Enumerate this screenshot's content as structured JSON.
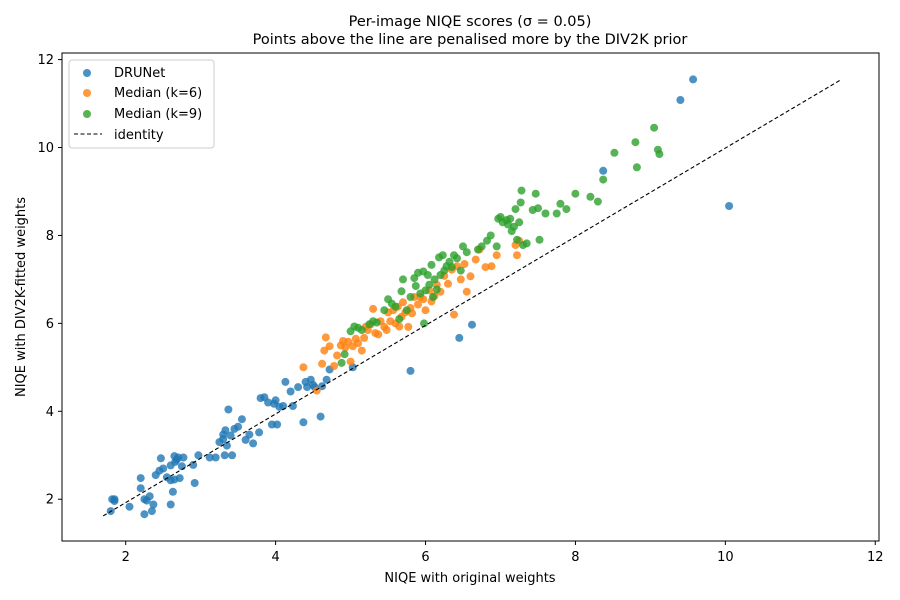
{
  "chart_data": {
    "type": "scatter",
    "title": "Per-image NIQE scores (σ = 0.05)",
    "subtitle": "Points above the line are penalised more by the DIV2K prior",
    "xlabel": "NIQE with original weights",
    "ylabel": "NIQE with DIV2K-fitted weights",
    "xlim": [
      1.15,
      12.05
    ],
    "ylim": [
      1.05,
      12.15
    ],
    "xticks": [
      2,
      4,
      6,
      8,
      10,
      12
    ],
    "yticks": [
      2,
      4,
      6,
      8,
      10,
      12
    ],
    "grid": false,
    "legend_position": "top-left",
    "identity_line": {
      "name": "identity",
      "x": [
        1.7,
        11.55
      ],
      "y": [
        1.62,
        11.55
      ],
      "color": "#000000",
      "style": "dashed"
    },
    "series": [
      {
        "name": "DRUNet",
        "color": "#1f77b4",
        "points": [
          [
            1.8,
            1.73
          ],
          [
            1.82,
            2.0
          ],
          [
            1.85,
            1.96
          ],
          [
            1.85,
            2.0
          ],
          [
            2.05,
            1.83
          ],
          [
            2.2,
            2.48
          ],
          [
            2.2,
            2.25
          ],
          [
            2.25,
            1.66
          ],
          [
            2.25,
            2.0
          ],
          [
            2.28,
            1.97
          ],
          [
            2.32,
            2.07
          ],
          [
            2.35,
            1.73
          ],
          [
            2.37,
            1.88
          ],
          [
            2.4,
            2.55
          ],
          [
            2.45,
            2.65
          ],
          [
            2.47,
            2.93
          ],
          [
            2.5,
            2.7
          ],
          [
            2.55,
            2.5
          ],
          [
            2.6,
            2.43
          ],
          [
            2.6,
            2.77
          ],
          [
            2.6,
            1.88
          ],
          [
            2.63,
            2.17
          ],
          [
            2.65,
            2.45
          ],
          [
            2.65,
            2.98
          ],
          [
            2.66,
            2.85
          ],
          [
            2.68,
            2.9
          ],
          [
            2.7,
            2.95
          ],
          [
            2.72,
            2.48
          ],
          [
            2.75,
            2.75
          ],
          [
            2.77,
            2.95
          ],
          [
            2.9,
            2.78
          ],
          [
            2.92,
            2.37
          ],
          [
            2.97,
            3.0
          ],
          [
            3.12,
            2.95
          ],
          [
            3.2,
            2.95
          ],
          [
            3.25,
            3.3
          ],
          [
            3.3,
            3.37
          ],
          [
            3.3,
            3.47
          ],
          [
            3.32,
            3.0
          ],
          [
            3.33,
            3.57
          ],
          [
            3.35,
            3.22
          ],
          [
            3.37,
            4.04
          ],
          [
            3.4,
            3.45
          ],
          [
            3.42,
            3.0
          ],
          [
            3.45,
            3.6
          ],
          [
            3.5,
            3.65
          ],
          [
            3.55,
            3.82
          ],
          [
            3.6,
            3.35
          ],
          [
            3.65,
            3.47
          ],
          [
            3.7,
            3.27
          ],
          [
            3.78,
            3.52
          ],
          [
            3.8,
            4.3
          ],
          [
            3.85,
            4.32
          ],
          [
            3.9,
            4.2
          ],
          [
            3.95,
            3.7
          ],
          [
            3.98,
            4.17
          ],
          [
            4.0,
            4.25
          ],
          [
            4.02,
            3.7
          ],
          [
            4.05,
            4.1
          ],
          [
            4.1,
            4.12
          ],
          [
            4.13,
            4.67
          ],
          [
            4.2,
            4.45
          ],
          [
            4.23,
            4.12
          ],
          [
            4.3,
            4.55
          ],
          [
            4.37,
            3.75
          ],
          [
            4.4,
            4.67
          ],
          [
            4.42,
            4.55
          ],
          [
            4.47,
            4.72
          ],
          [
            4.5,
            4.6
          ],
          [
            4.52,
            4.55
          ],
          [
            4.6,
            3.88
          ],
          [
            4.62,
            4.57
          ],
          [
            4.68,
            4.72
          ],
          [
            4.72,
            4.95
          ],
          [
            5.03,
            5.0
          ],
          [
            5.8,
            4.92
          ],
          [
            6.45,
            5.67
          ],
          [
            6.62,
            5.97
          ],
          [
            8.37,
            9.47
          ],
          [
            9.4,
            11.08
          ],
          [
            9.57,
            11.55
          ],
          [
            10.05,
            8.67
          ]
        ]
      },
      {
        "name": "Median (k=6)",
        "color": "#ff7f0e",
        "points": [
          [
            4.37,
            5.0
          ],
          [
            4.55,
            4.47
          ],
          [
            4.62,
            5.08
          ],
          [
            4.65,
            5.38
          ],
          [
            4.67,
            5.68
          ],
          [
            4.72,
            5.48
          ],
          [
            4.78,
            5.03
          ],
          [
            4.82,
            5.27
          ],
          [
            4.87,
            5.5
          ],
          [
            4.9,
            5.6
          ],
          [
            4.93,
            5.45
          ],
          [
            4.97,
            5.58
          ],
          [
            5.0,
            5.13
          ],
          [
            5.03,
            5.48
          ],
          [
            5.07,
            5.65
          ],
          [
            5.1,
            5.55
          ],
          [
            5.15,
            5.38
          ],
          [
            5.18,
            5.67
          ],
          [
            5.2,
            5.92
          ],
          [
            5.23,
            5.85
          ],
          [
            5.27,
            5.98
          ],
          [
            5.3,
            6.33
          ],
          [
            5.33,
            5.78
          ],
          [
            5.37,
            5.75
          ],
          [
            5.4,
            6.05
          ],
          [
            5.45,
            5.92
          ],
          [
            5.48,
            5.85
          ],
          [
            5.5,
            6.25
          ],
          [
            5.53,
            6.05
          ],
          [
            5.57,
            6.3
          ],
          [
            5.6,
            6.0
          ],
          [
            5.63,
            6.38
          ],
          [
            5.65,
            5.93
          ],
          [
            5.68,
            6.15
          ],
          [
            5.7,
            6.48
          ],
          [
            5.73,
            6.25
          ],
          [
            5.77,
            5.92
          ],
          [
            5.8,
            6.35
          ],
          [
            5.82,
            6.23
          ],
          [
            5.85,
            6.6
          ],
          [
            5.9,
            6.43
          ],
          [
            5.93,
            6.6
          ],
          [
            5.97,
            6.55
          ],
          [
            6.0,
            6.3
          ],
          [
            6.05,
            6.75
          ],
          [
            6.08,
            6.5
          ],
          [
            6.12,
            6.62
          ],
          [
            6.15,
            6.88
          ],
          [
            6.2,
            6.72
          ],
          [
            6.25,
            7.08
          ],
          [
            6.3,
            6.9
          ],
          [
            6.35,
            7.22
          ],
          [
            6.38,
            6.2
          ],
          [
            6.42,
            7.3
          ],
          [
            6.47,
            7.0
          ],
          [
            6.52,
            7.35
          ],
          [
            6.55,
            6.72
          ],
          [
            6.6,
            7.07
          ],
          [
            6.67,
            7.45
          ],
          [
            6.72,
            7.68
          ],
          [
            6.8,
            7.28
          ],
          [
            6.88,
            7.3
          ],
          [
            6.95,
            7.55
          ],
          [
            7.2,
            7.78
          ],
          [
            7.22,
            7.55
          ],
          [
            7.25,
            7.88
          ]
        ]
      },
      {
        "name": "Median (k=9)",
        "color": "#2ca02c",
        "points": [
          [
            4.88,
            5.1
          ],
          [
            4.92,
            5.3
          ],
          [
            5.0,
            5.82
          ],
          [
            5.05,
            5.93
          ],
          [
            5.1,
            5.9
          ],
          [
            5.15,
            5.85
          ],
          [
            5.25,
            5.98
          ],
          [
            5.3,
            6.05
          ],
          [
            5.35,
            6.02
          ],
          [
            5.45,
            6.3
          ],
          [
            5.5,
            6.55
          ],
          [
            5.55,
            6.45
          ],
          [
            5.6,
            6.38
          ],
          [
            5.65,
            6.1
          ],
          [
            5.68,
            6.73
          ],
          [
            5.7,
            7.0
          ],
          [
            5.75,
            6.3
          ],
          [
            5.8,
            6.6
          ],
          [
            5.85,
            7.03
          ],
          [
            5.87,
            6.85
          ],
          [
            5.9,
            7.15
          ],
          [
            5.93,
            6.68
          ],
          [
            5.97,
            7.18
          ],
          [
            5.98,
            6.0
          ],
          [
            6.0,
            6.75
          ],
          [
            6.03,
            7.1
          ],
          [
            6.05,
            6.88
          ],
          [
            6.08,
            7.33
          ],
          [
            6.1,
            6.6
          ],
          [
            6.12,
            7.0
          ],
          [
            6.15,
            6.77
          ],
          [
            6.18,
            7.5
          ],
          [
            6.2,
            7.1
          ],
          [
            6.23,
            7.55
          ],
          [
            6.25,
            7.2
          ],
          [
            6.28,
            7.3
          ],
          [
            6.32,
            7.4
          ],
          [
            6.35,
            7.28
          ],
          [
            6.38,
            7.55
          ],
          [
            6.42,
            7.48
          ],
          [
            6.47,
            7.2
          ],
          [
            6.5,
            7.75
          ],
          [
            6.55,
            7.62
          ],
          [
            6.7,
            7.68
          ],
          [
            6.75,
            7.75
          ],
          [
            6.82,
            7.88
          ],
          [
            6.87,
            8.0
          ],
          [
            6.95,
            7.75
          ],
          [
            6.97,
            8.38
          ],
          [
            7.0,
            8.42
          ],
          [
            7.03,
            8.3
          ],
          [
            7.08,
            8.35
          ],
          [
            7.1,
            8.25
          ],
          [
            7.13,
            8.38
          ],
          [
            7.15,
            8.1
          ],
          [
            7.18,
            8.2
          ],
          [
            7.2,
            8.6
          ],
          [
            7.22,
            7.9
          ],
          [
            7.25,
            8.3
          ],
          [
            7.27,
            8.75
          ],
          [
            7.28,
            9.02
          ],
          [
            7.3,
            7.78
          ],
          [
            7.35,
            7.82
          ],
          [
            7.43,
            8.58
          ],
          [
            7.47,
            8.95
          ],
          [
            7.5,
            8.62
          ],
          [
            7.52,
            7.9
          ],
          [
            7.6,
            8.5
          ],
          [
            7.75,
            8.5
          ],
          [
            7.8,
            8.72
          ],
          [
            7.88,
            8.6
          ],
          [
            8.0,
            8.95
          ],
          [
            8.2,
            8.88
          ],
          [
            8.3,
            8.77
          ],
          [
            8.37,
            9.27
          ],
          [
            8.52,
            9.88
          ],
          [
            8.8,
            10.12
          ],
          [
            8.82,
            9.55
          ],
          [
            9.05,
            10.45
          ],
          [
            9.1,
            9.95
          ],
          [
            9.12,
            9.85
          ]
        ]
      }
    ]
  }
}
